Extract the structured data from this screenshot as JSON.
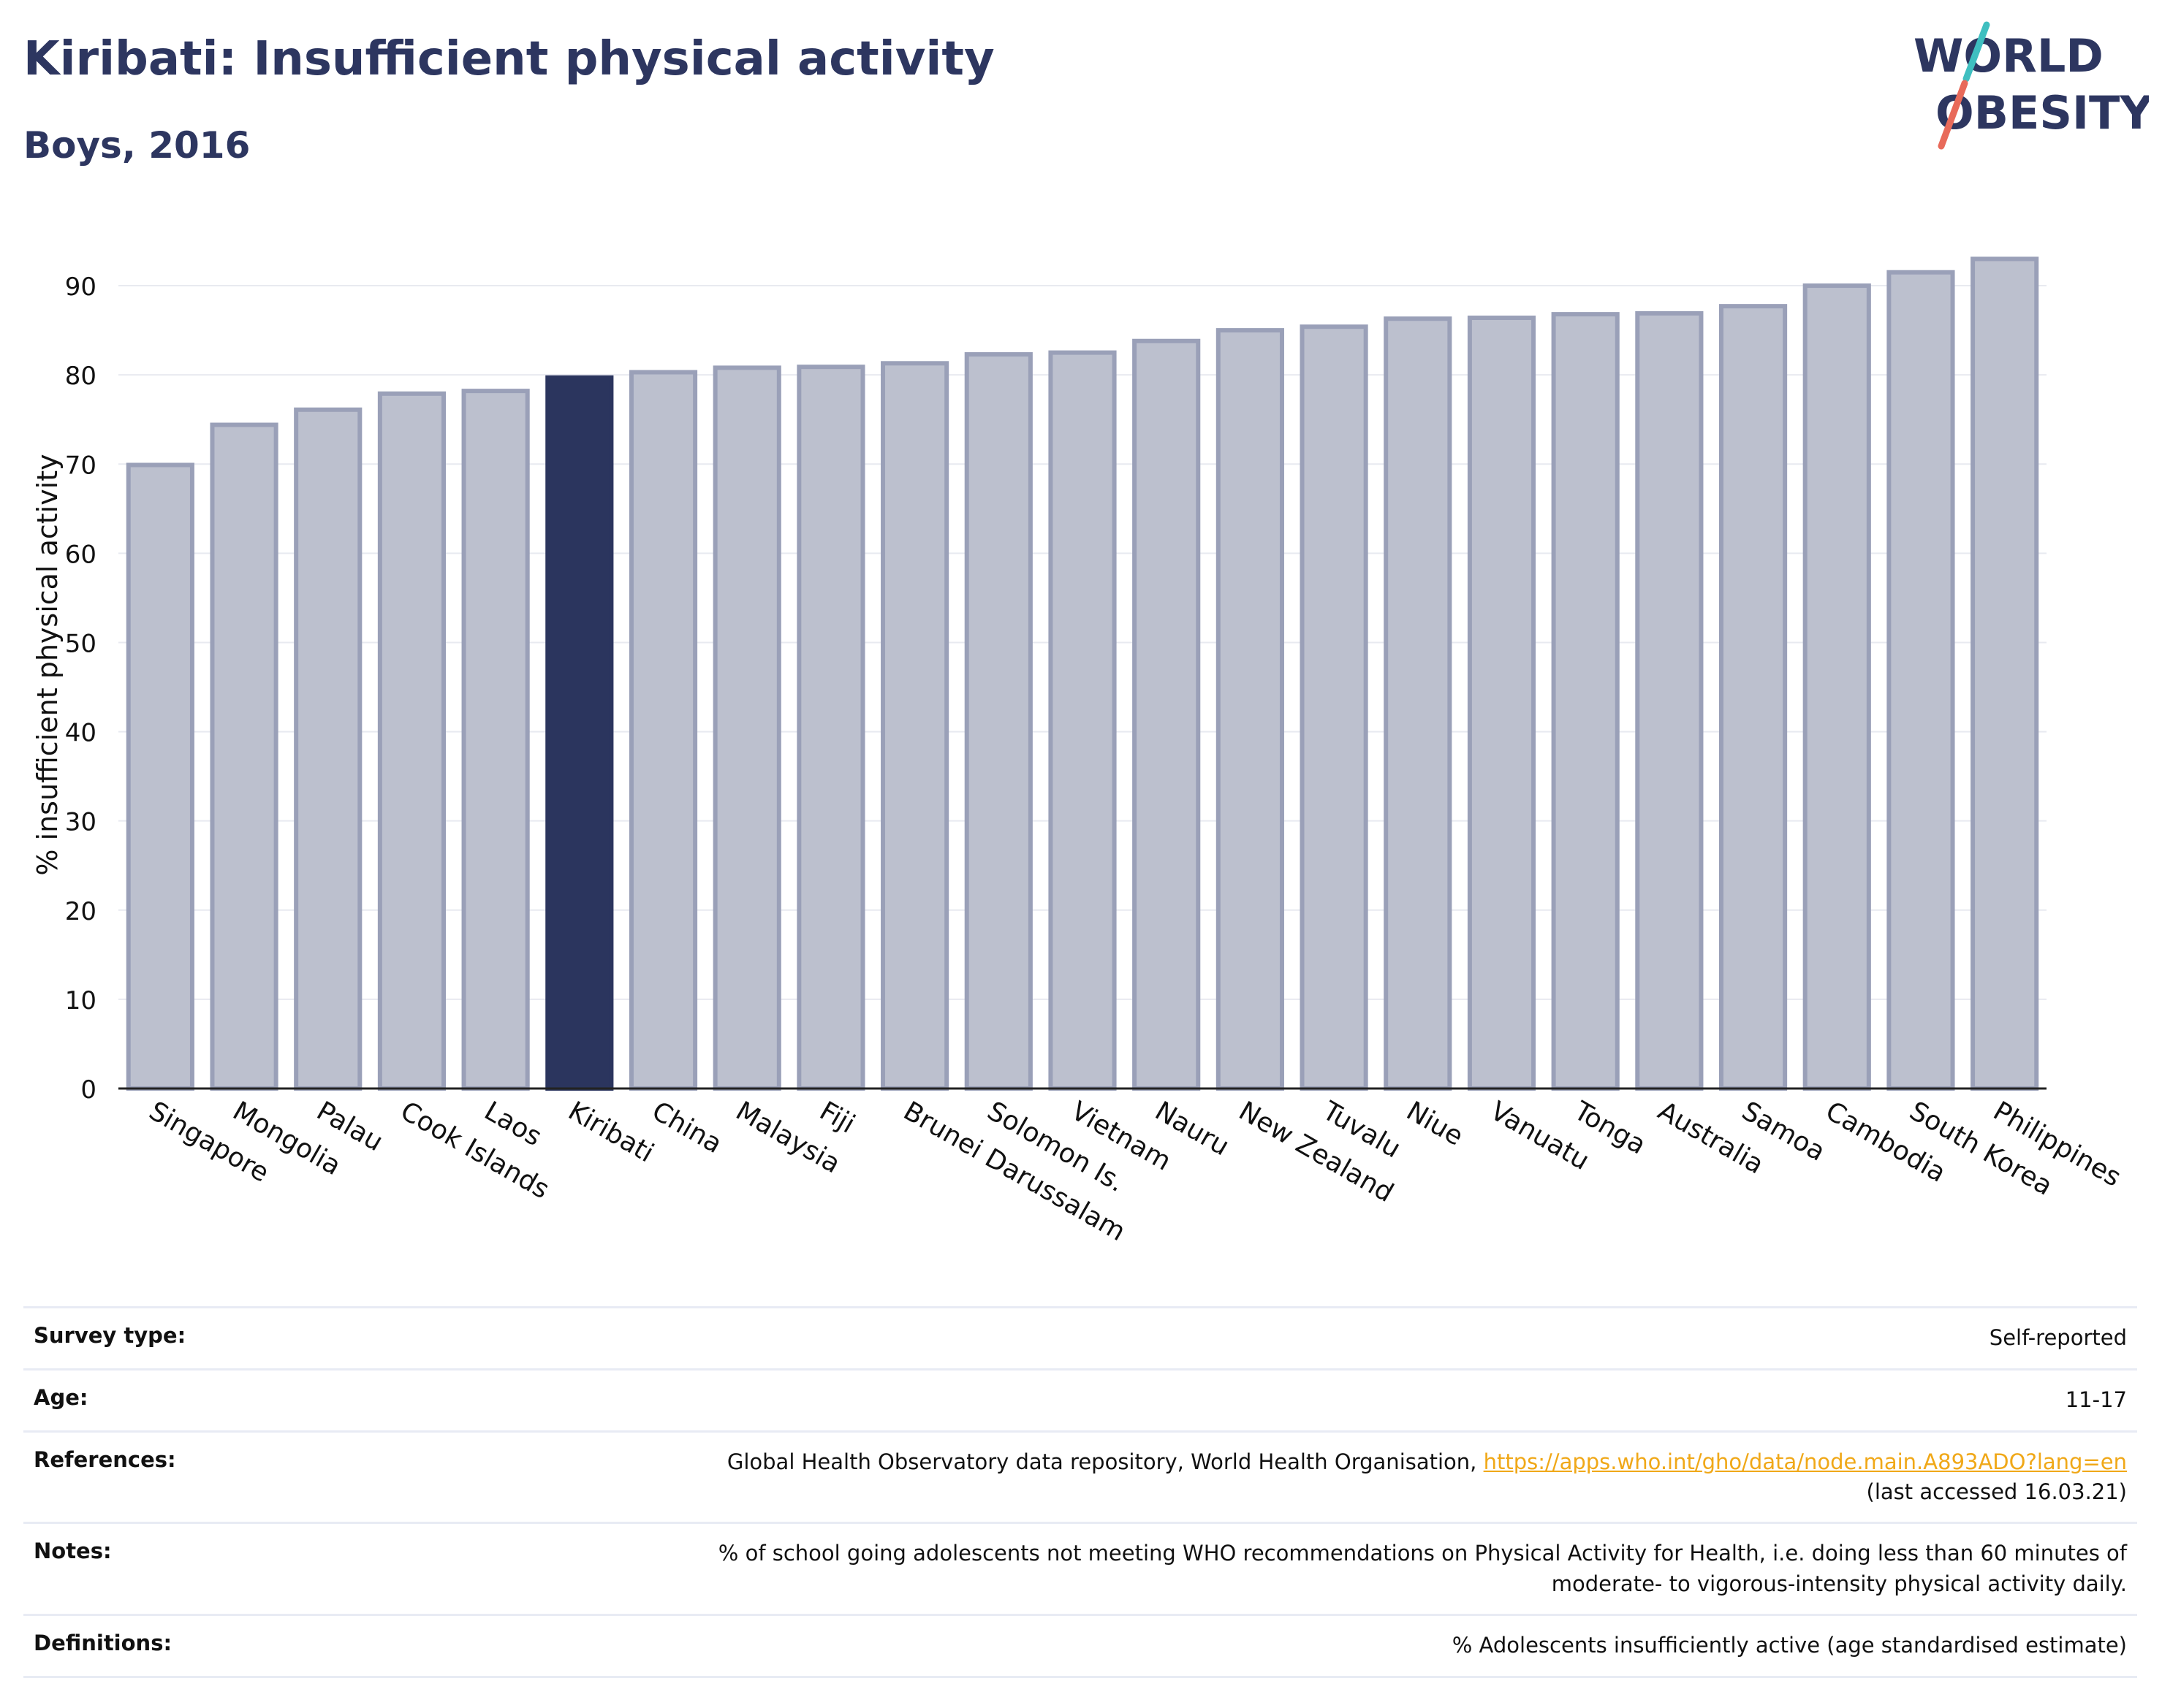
{
  "header": {
    "title": "Kiribati: Insufficient physical activity",
    "subtitle": "Boys, 2016"
  },
  "logo": {
    "line1": "WORLD",
    "line2": "OBESITY",
    "colors": {
      "text": "#2d3660",
      "slash_top": "#3fbfc0",
      "slash_bottom": "#e86a5a"
    }
  },
  "colors": {
    "bar_fill": "#bcc0ce",
    "bar_stroke": "#9aa0b8",
    "highlight_fill": "#2b355e",
    "grid": "#e8eaf0",
    "axis": "#222222"
  },
  "chart_data": {
    "type": "bar",
    "title": "",
    "xlabel": "",
    "ylabel": "% insufficient physical activity",
    "ylim": [
      0,
      95
    ],
    "yticks": [
      0,
      10,
      20,
      30,
      40,
      50,
      60,
      70,
      80,
      90
    ],
    "grid": true,
    "highlight": "Kiribati",
    "categories": [
      "Singapore",
      "Mongolia",
      "Palau",
      "Cook Islands",
      "Laos",
      "Kiribati",
      "China",
      "Malaysia",
      "Fiji",
      "Brunei Darussalam",
      "Solomon Is.",
      "Vietnam",
      "Nauru",
      "New Zealand",
      "Tuvalu",
      "Niue",
      "Vanuatu",
      "Tonga",
      "Australia",
      "Samoa",
      "Cambodia",
      "South Korea",
      "Philippines"
    ],
    "values": [
      69.9,
      74.4,
      76.1,
      77.9,
      78.2,
      79.7,
      80.3,
      80.8,
      80.9,
      81.3,
      82.3,
      82.5,
      83.8,
      85.0,
      85.4,
      86.3,
      86.4,
      86.8,
      86.9,
      87.7,
      90.0,
      91.5,
      93.0
    ]
  },
  "info": {
    "survey_label": "Survey type:",
    "survey_value": "Self-reported",
    "age_label": "Age:",
    "age_value": "11-17",
    "references_label": "References:",
    "references_text": "Global Health Observatory data repository, World Health Organisation, ",
    "references_link": "https://apps.who.int/gho/data/node.main.A893ADO?lang=en",
    "references_accessed": "(last accessed 16.03.21)",
    "notes_label": "Notes:",
    "notes_value": "% of school going adolescents not meeting WHO recommendations on Physical Activity for Health, i.e. doing less than 60 minutes of moderate- to vigorous-intensity physical activity daily.",
    "definitions_label": "Definitions:",
    "definitions_value": "% Adolescents insufficiently active (age standardised estimate)"
  }
}
